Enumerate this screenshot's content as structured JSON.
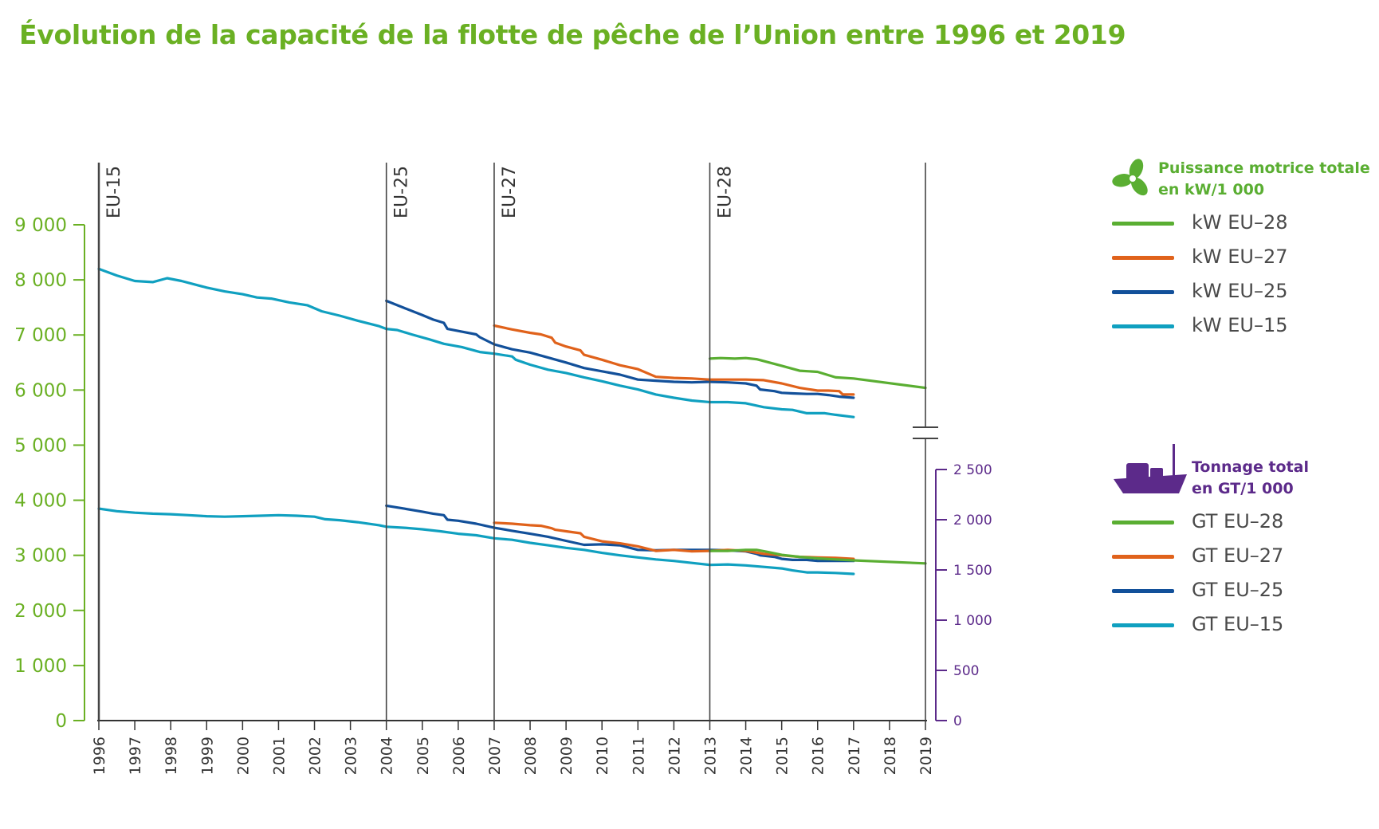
{
  "title": "Évolution de la capacité de la flotte de pêche de l’Union entre 1996 et 2019",
  "colors": {
    "eu28": "#5aae32",
    "eu27": "#e0621b",
    "eu25": "#12509a",
    "eu15": "#10a0c0",
    "left_axis": "#6ab023",
    "right_axis": "#5c2a8a",
    "text": "#4a4a4a"
  },
  "legend": {
    "kw_header": [
      "Puissance motrice totale",
      "en kW/1 000"
    ],
    "kw_icon": "propeller-icon",
    "kw_items": [
      {
        "label": "kW EU–28",
        "color": "#5aae32"
      },
      {
        "label": "kW EU–27",
        "color": "#e0621b"
      },
      {
        "label": "kW EU–25",
        "color": "#12509a"
      },
      {
        "label": "kW EU–15",
        "color": "#10a0c0"
      }
    ],
    "gt_header": [
      "Tonnage total",
      "en GT/1 000"
    ],
    "gt_icon": "fishing-boat-icon",
    "gt_items": [
      {
        "label": "GT EU–28",
        "color": "#5aae32"
      },
      {
        "label": "GT EU–27",
        "color": "#e0621b"
      },
      {
        "label": "GT EU–25",
        "color": "#12509a"
      },
      {
        "label": "GT EU–15",
        "color": "#10a0c0"
      }
    ]
  },
  "chart_data": {
    "type": "line",
    "title": "Évolution de la capacité de la flotte de pêche de l’Union entre 1996 et 2019",
    "x_ticks": [
      "1996",
      "1997",
      "1998",
      "1999",
      "2000",
      "2001",
      "2002",
      "2003",
      "2004",
      "2005",
      "2006",
      "2007",
      "2008",
      "2009",
      "2010",
      "2011",
      "2012",
      "2013",
      "2014",
      "2015",
      "2016",
      "2017",
      "2018",
      "2019"
    ],
    "xlim": [
      1996,
      2019
    ],
    "left_axis": {
      "ylim": [
        0,
        9000
      ],
      "ticks": [
        "0",
        "1 000",
        "2 000",
        "3 000",
        "4 000",
        "5 000",
        "6 000",
        "7 000",
        "8 000",
        "9 000"
      ]
    },
    "right_axis": {
      "ylim": [
        0,
        2500
      ],
      "ticks": [
        "0",
        "500",
        "1 000",
        "1 500",
        "2 000",
        "2 500"
      ]
    },
    "enlargements": [
      {
        "label": "EU-15",
        "year": 1996
      },
      {
        "label": "EU-25",
        "year": 2004
      },
      {
        "label": "EU-27",
        "year": 2007
      },
      {
        "label": "EU-28",
        "year": 2013
      }
    ],
    "axis_end": 2019,
    "series": [
      {
        "name": "kW EU–15",
        "axis": "left",
        "color": "#10a0c0",
        "x": [
          1996,
          1996.5,
          1997,
          1997.5,
          1997.9,
          1998.3,
          1999,
          1999.5,
          2000,
          2000.4,
          2000.8,
          2001.3,
          2001.8,
          2002.2,
          2002.7,
          2003.2,
          2003.8,
          2004,
          2004.3,
          2004.7,
          2005.2,
          2005.6,
          2006.1,
          2006.6,
          2007,
          2007.5,
          2007.6,
          2008,
          2008.5,
          2009,
          2009.5,
          2010,
          2010.5,
          2011,
          2011.5,
          2012,
          2012.5,
          2013,
          2013.5,
          2014,
          2014.5,
          2015,
          2015.3,
          2015.7,
          2016,
          2016.2,
          2016.5,
          2017
        ],
        "y": [
          8200,
          8080,
          7980,
          7960,
          8030,
          7980,
          7860,
          7790,
          7740,
          7680,
          7660,
          7590,
          7540,
          7430,
          7350,
          7260,
          7160,
          7110,
          7090,
          7010,
          6920,
          6840,
          6780,
          6690,
          6660,
          6610,
          6550,
          6460,
          6370,
          6310,
          6230,
          6160,
          6080,
          6010,
          5920,
          5860,
          5810,
          5780,
          5780,
          5760,
          5690,
          5650,
          5640,
          5580,
          5580,
          5580,
          5550,
          5510
        ]
      },
      {
        "name": "kW EU–25",
        "axis": "left",
        "color": "#12509a",
        "x": [
          2004,
          2004.5,
          2005,
          2005.3,
          2005.6,
          2005.7,
          2006.1,
          2006.5,
          2006.6,
          2007,
          2007.5,
          2008,
          2008.5,
          2009,
          2009.5,
          2010,
          2010.5,
          2011,
          2011.5,
          2012,
          2012.5,
          2013,
          2013.5,
          2014,
          2014.3,
          2014.4,
          2014.8,
          2015,
          2015.3,
          2015.7,
          2016,
          2016.3,
          2016.6,
          2017
        ],
        "y": [
          7620,
          7490,
          7360,
          7280,
          7220,
          7110,
          7060,
          7010,
          6960,
          6830,
          6740,
          6680,
          6590,
          6500,
          6400,
          6340,
          6280,
          6190,
          6170,
          6150,
          6140,
          6150,
          6140,
          6120,
          6080,
          6010,
          5980,
          5950,
          5940,
          5930,
          5930,
          5910,
          5880,
          5860
        ]
      },
      {
        "name": "kW EU–27",
        "axis": "left",
        "color": "#e0621b",
        "x": [
          2007,
          2007.5,
          2008,
          2008.3,
          2008.6,
          2008.7,
          2009,
          2009.4,
          2009.5,
          2010,
          2010.5,
          2011,
          2011.5,
          2012,
          2012.5,
          2013,
          2013.5,
          2014,
          2014.5,
          2015,
          2015.5,
          2016,
          2016.3,
          2016.6,
          2016.7,
          2017
        ],
        "y": [
          7170,
          7100,
          7040,
          7010,
          6950,
          6860,
          6790,
          6720,
          6640,
          6550,
          6450,
          6380,
          6240,
          6220,
          6210,
          6190,
          6190,
          6190,
          6180,
          6120,
          6040,
          5990,
          5990,
          5980,
          5920,
          5920
        ]
      },
      {
        "name": "kW EU–28",
        "axis": "left",
        "color": "#5aae32",
        "x": [
          2013,
          2013.3,
          2013.7,
          2014,
          2014.3,
          2015,
          2015.5,
          2016,
          2016.5,
          2017,
          2019
        ],
        "y": [
          6570,
          6580,
          6570,
          6580,
          6560,
          6440,
          6350,
          6330,
          6230,
          6210,
          6040
        ]
      },
      {
        "name": "GT EU–15",
        "axis": "right",
        "color": "#10a0c0",
        "x": [
          1996,
          1996.5,
          1997,
          1997.5,
          1998,
          1998.5,
          1999,
          1999.5,
          2000,
          2000.5,
          2001,
          2001.5,
          2002,
          2002.3,
          2002.7,
          2003.2,
          2003.8,
          2004,
          2004.5,
          2005,
          2005.5,
          2006,
          2006.5,
          2007,
          2007.5,
          2008,
          2008.5,
          2009,
          2009.5,
          2010,
          2010.5,
          2011,
          2011.5,
          2012,
          2012.5,
          2013,
          2013.5,
          2014,
          2014.5,
          2015,
          2015.3,
          2015.7,
          2016,
          2016.5,
          2017
        ],
        "y": [
          2110,
          2085,
          2070,
          2060,
          2055,
          2045,
          2035,
          2030,
          2035,
          2040,
          2045,
          2040,
          2030,
          2005,
          1995,
          1975,
          1945,
          1930,
          1920,
          1905,
          1885,
          1860,
          1845,
          1815,
          1800,
          1770,
          1745,
          1720,
          1700,
          1670,
          1645,
          1625,
          1605,
          1590,
          1570,
          1550,
          1555,
          1545,
          1530,
          1515,
          1495,
          1475,
          1475,
          1470,
          1460
        ]
      },
      {
        "name": "GT EU–25",
        "axis": "right",
        "color": "#12509a",
        "x": [
          2004,
          2004.5,
          2005,
          2005.3,
          2005.6,
          2005.7,
          2006,
          2006.5,
          2007,
          2007.5,
          2008,
          2008.5,
          2009,
          2009.5,
          2010,
          2010.5,
          2011,
          2011.5,
          2012,
          2012.5,
          2013,
          2013.5,
          2014,
          2014.3,
          2014.4,
          2014.8,
          2015,
          2015.3,
          2015.7,
          2016,
          2016.5,
          2017
        ],
        "y": [
          2140,
          2110,
          2080,
          2060,
          2045,
          2000,
          1990,
          1960,
          1920,
          1890,
          1860,
          1830,
          1790,
          1750,
          1755,
          1745,
          1700,
          1695,
          1700,
          1700,
          1700,
          1695,
          1685,
          1660,
          1645,
          1630,
          1610,
          1600,
          1600,
          1590,
          1590,
          1590
        ]
      },
      {
        "name": "GT EU–27",
        "axis": "right",
        "color": "#e0621b",
        "x": [
          2007,
          2007.5,
          2008,
          2008.3,
          2008.6,
          2008.7,
          2009,
          2009.4,
          2009.5,
          2010,
          2010.5,
          2011,
          2011.5,
          2012,
          2012.5,
          2013,
          2013.5,
          2014,
          2014.5,
          2015,
          2015.5,
          2016,
          2016.5,
          2017
        ],
        "y": [
          1970,
          1960,
          1945,
          1940,
          1915,
          1900,
          1885,
          1865,
          1830,
          1785,
          1765,
          1735,
          1690,
          1700,
          1685,
          1690,
          1700,
          1690,
          1660,
          1645,
          1630,
          1625,
          1620,
          1610
        ]
      },
      {
        "name": "GT EU–28",
        "axis": "right",
        "color": "#5aae32",
        "x": [
          2013,
          2013.5,
          2014,
          2014.3,
          2014.6,
          2015,
          2015.5,
          2016,
          2016.5,
          2017,
          2019
        ],
        "y": [
          1690,
          1690,
          1700,
          1700,
          1680,
          1650,
          1630,
          1615,
          1605,
          1595,
          1565
        ]
      }
    ]
  }
}
